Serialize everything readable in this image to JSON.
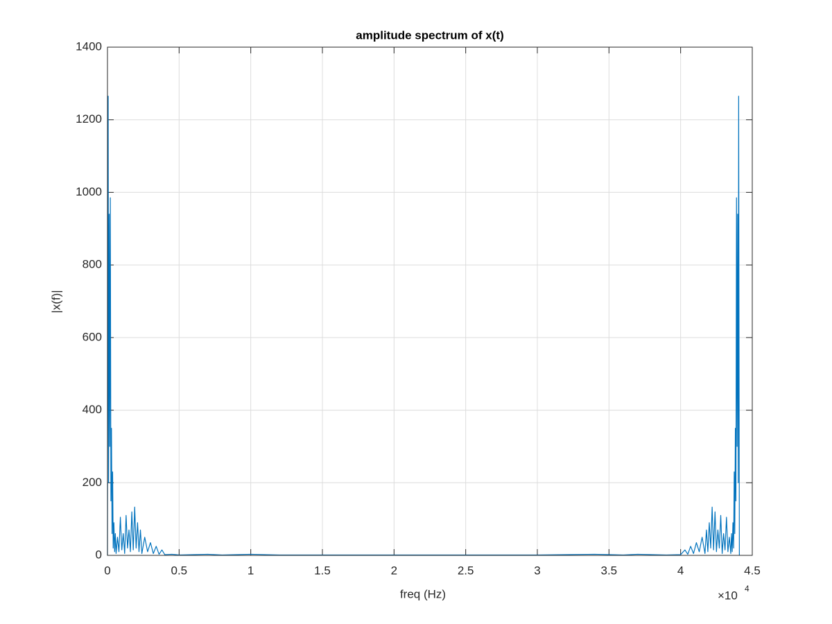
{
  "chart_data": {
    "type": "line",
    "title": "amplitude spectrum of x(t)",
    "xlabel": "freq (Hz)",
    "ylabel": "|x(f)|",
    "x_exponent": {
      "base": "×10",
      "power": "4"
    },
    "x": [
      0,
      0.005,
      0.008,
      0.012,
      0.016,
      0.02,
      0.024,
      0.028,
      0.032,
      0.036,
      0.04,
      0.045,
      0.05,
      0.055,
      0.06,
      0.07,
      0.08,
      0.09,
      0.1,
      0.11,
      0.12,
      0.13,
      0.14,
      0.15,
      0.16,
      0.17,
      0.18,
      0.19,
      0.2,
      0.21,
      0.22,
      0.23,
      0.24,
      0.26,
      0.28,
      0.3,
      0.32,
      0.34,
      0.36,
      0.38,
      0.4,
      0.45,
      0.5,
      0.7,
      0.8,
      1.0,
      1.2,
      1.5,
      2.0,
      2.5,
      3.0,
      3.4,
      3.6,
      3.7,
      3.9,
      4.0,
      4.03,
      4.05,
      4.07,
      4.09,
      4.11,
      4.13,
      4.15,
      4.17,
      4.18,
      4.19,
      4.2,
      4.21,
      4.22,
      4.23,
      4.24,
      4.25,
      4.26,
      4.27,
      4.28,
      4.29,
      4.3,
      4.31,
      4.32,
      4.33,
      4.34,
      4.35,
      4.355,
      4.36,
      4.365,
      4.37,
      4.374,
      4.378,
      4.382,
      4.386,
      4.39,
      4.394,
      4.398,
      4.402,
      4.405,
      4.41
    ],
    "series": [
      {
        "name": "|x(f)|",
        "color": "#0072bd",
        "values": [
          0,
          1265,
          200,
          940,
          300,
          985,
          150,
          350,
          60,
          230,
          20,
          90,
          10,
          60,
          5,
          50,
          10,
          105,
          15,
          60,
          5,
          110,
          20,
          70,
          10,
          120,
          15,
          133,
          20,
          90,
          10,
          70,
          5,
          50,
          10,
          35,
          5,
          25,
          3,
          15,
          2,
          3,
          1,
          3,
          1,
          3,
          1,
          1,
          1,
          1,
          1,
          3,
          1,
          3,
          1,
          2,
          15,
          3,
          25,
          5,
          35,
          10,
          50,
          5,
          70,
          10,
          90,
          20,
          133,
          15,
          120,
          10,
          70,
          20,
          110,
          5,
          60,
          15,
          105,
          10,
          50,
          5,
          60,
          10,
          90,
          20,
          230,
          60,
          350,
          150,
          985,
          300,
          940,
          200,
          1265,
          0
        ]
      }
    ],
    "xlim": [
      0,
      4.5
    ],
    "xticks": [
      0,
      0.5,
      1,
      1.5,
      2,
      2.5,
      3,
      3.5,
      4,
      4.5
    ],
    "ylim": [
      0,
      1400
    ],
    "yticks": [
      0,
      200,
      400,
      600,
      800,
      1000,
      1200,
      1400
    ],
    "grid": true
  }
}
